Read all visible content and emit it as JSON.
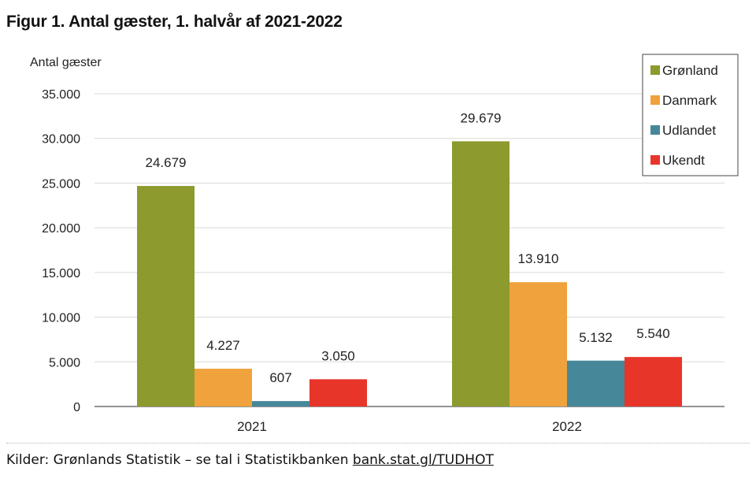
{
  "title": "Figur 1. Antal gæster, 1. halvår af 2021-2022",
  "source": {
    "text": "Kilder: Grønlands Statistik – se tal i Statistikbanken",
    "link": "bank.stat.gl/TUDHOT"
  },
  "chart_data": {
    "type": "bar",
    "ylabel": "Antal gæster",
    "categories": [
      "2021",
      "2022"
    ],
    "ylim": [
      0,
      35000
    ],
    "yticks": [
      0,
      5000,
      10000,
      15000,
      20000,
      25000,
      30000,
      35000
    ],
    "ytick_labels": [
      "0",
      "5.000",
      "10.000",
      "15.000",
      "20.000",
      "25.000",
      "30.000",
      "35.000"
    ],
    "grid": true,
    "legend_position": "top-right",
    "series": [
      {
        "name": "Grønland",
        "color": "#8c9a2e",
        "values": [
          24679,
          29679
        ],
        "labels": [
          "24.679",
          "29.679"
        ]
      },
      {
        "name": "Danmark",
        "color": "#f0a23c",
        "values": [
          4227,
          13910
        ],
        "labels": [
          "4.227",
          "13.910"
        ]
      },
      {
        "name": "Udlandet",
        "color": "#46889a",
        "values": [
          607,
          5132
        ],
        "labels": [
          "607",
          "5.132"
        ]
      },
      {
        "name": "Ukendt",
        "color": "#e8352a",
        "values": [
          3050,
          5540
        ],
        "labels": [
          "3.050",
          "5.540"
        ]
      }
    ]
  }
}
